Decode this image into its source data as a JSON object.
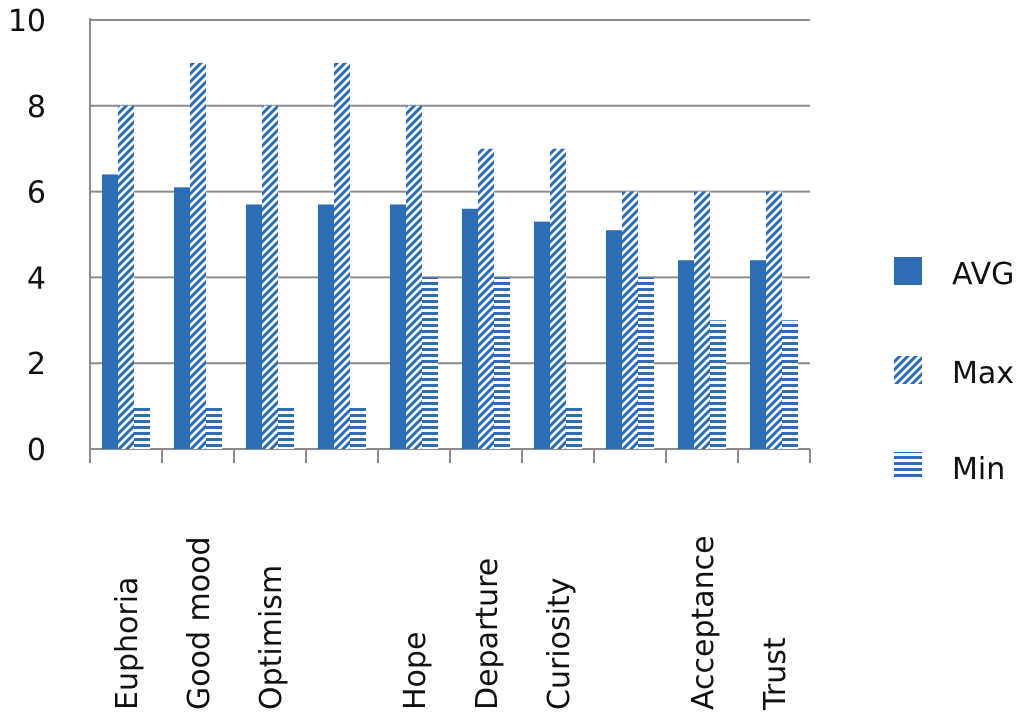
{
  "chart_data": {
    "type": "bar",
    "categories": [
      "Euphoria",
      "Good mood",
      "Optimism",
      "",
      "Hope",
      "Departure",
      "Curiosity",
      "",
      "Acceptance",
      "Trust"
    ],
    "series": [
      {
        "name": "AVG",
        "values": [
          6.4,
          6.1,
          5.7,
          5.7,
          5.7,
          5.6,
          5.3,
          5.1,
          4.4,
          4.4
        ]
      },
      {
        "name": "Max",
        "values": [
          8,
          9,
          8,
          9,
          8,
          7,
          7,
          6,
          6,
          6
        ]
      },
      {
        "name": "Min",
        "values": [
          1,
          1,
          1,
          1,
          4,
          4,
          1,
          4,
          3,
          3
        ]
      }
    ],
    "ylim": [
      0,
      10
    ],
    "yticks": [
      "0",
      "2",
      "4",
      "6",
      "8",
      "10"
    ],
    "grid": true,
    "legend_position": "right",
    "colors": {
      "bar": "#2e6db5",
      "grid": "#8c8c8c",
      "text": "#111111"
    }
  }
}
